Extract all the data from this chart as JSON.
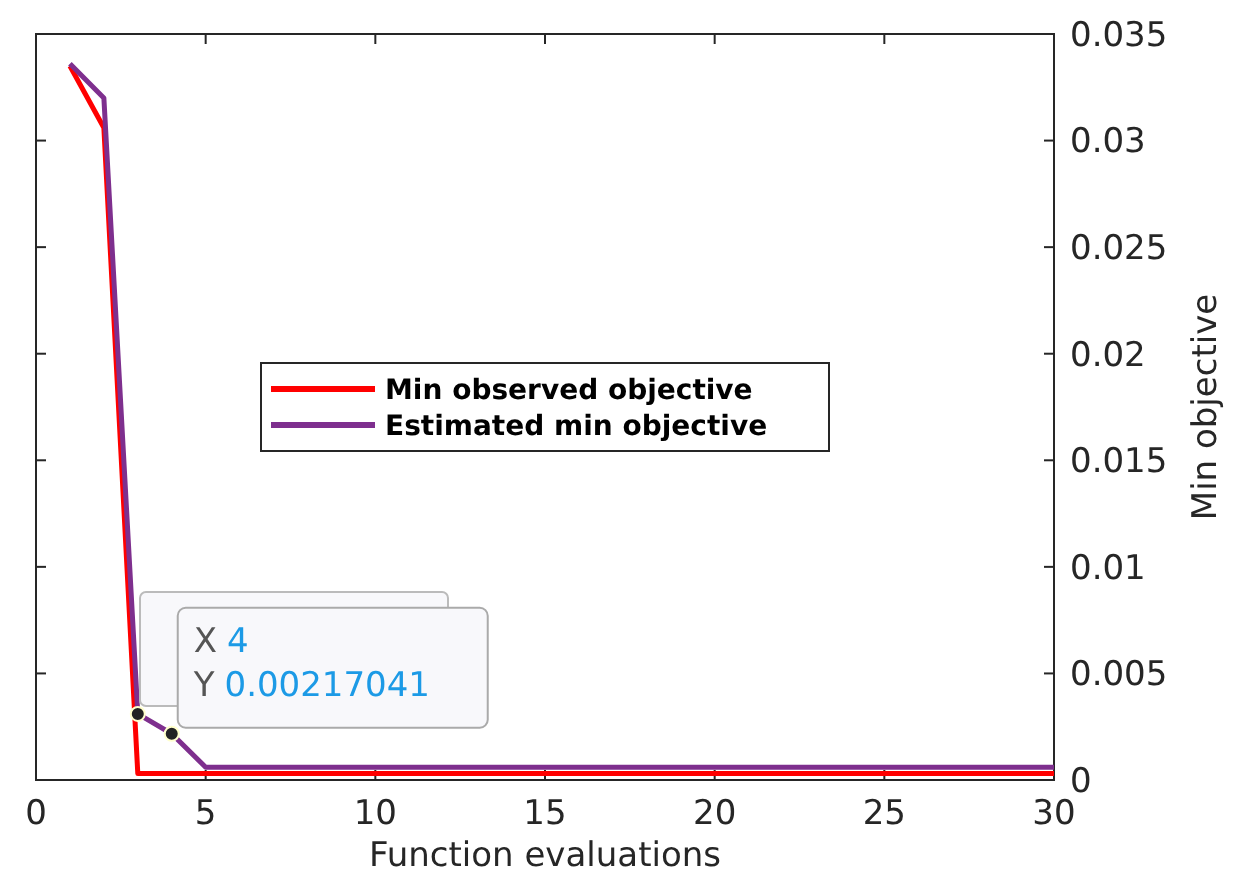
{
  "chart_data": {
    "type": "line",
    "xlabel": "Function evaluations",
    "ylabel": "Min objective",
    "x": [
      1,
      2,
      3,
      4,
      5,
      6,
      7,
      8,
      9,
      10,
      11,
      12,
      13,
      14,
      15,
      16,
      17,
      18,
      19,
      20,
      21,
      22,
      23,
      24,
      25,
      26,
      27,
      28,
      29,
      30
    ],
    "series": [
      {
        "name": "Min observed objective",
        "color": "#ff0000",
        "values": [
          0.0335,
          0.0306,
          0.0003,
          0.0003,
          0.0003,
          0.0003,
          0.0003,
          0.0003,
          0.0003,
          0.0003,
          0.0003,
          0.0003,
          0.0003,
          0.0003,
          0.0003,
          0.0003,
          0.0003,
          0.0003,
          0.0003,
          0.0003,
          0.0003,
          0.0003,
          0.0003,
          0.0003,
          0.0003,
          0.0003,
          0.0003,
          0.0003,
          0.0003,
          0.0003
        ]
      },
      {
        "name": "Estimated min objective",
        "color": "#7e2f8e",
        "values": [
          0.0336,
          0.032,
          0.0031,
          0.00217041,
          0.0006,
          0.0006,
          0.0006,
          0.0006,
          0.0006,
          0.0006,
          0.0006,
          0.0006,
          0.0006,
          0.0006,
          0.0006,
          0.0006,
          0.0006,
          0.0006,
          0.0006,
          0.0006,
          0.0006,
          0.0006,
          0.0006,
          0.0006,
          0.0006,
          0.0006,
          0.0006,
          0.0006,
          0.0006,
          0.0006
        ]
      }
    ],
    "xlim": [
      0,
      30
    ],
    "xticks": [
      0,
      5,
      10,
      15,
      20,
      25,
      30
    ],
    "ylim": [
      0,
      0.035
    ],
    "yticks": [
      0,
      0.005,
      0.01,
      0.015,
      0.02,
      0.025,
      0.03,
      0.035
    ],
    "legend": "center",
    "grid": false,
    "annotations": [
      {
        "text": "X 4\nY 0.00217041",
        "x": 4,
        "y": 0.00217041
      }
    ]
  }
}
